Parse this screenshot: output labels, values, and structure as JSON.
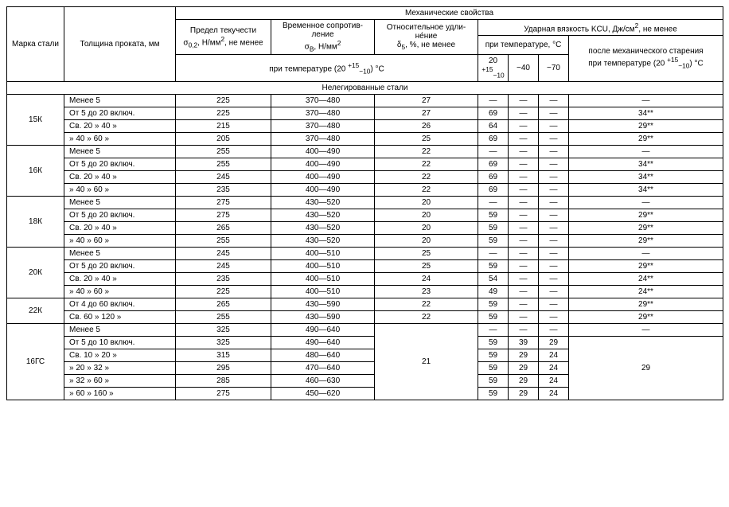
{
  "headers": {
    "steel_grade": "Марка стали",
    "thickness": "Толщина проката, мм",
    "mech_props": "Механические свойства",
    "yield_html": "Предел текучести<br>σ<sub>0,2</sub>, Н/мм<sup>2</sup>, не менее",
    "tensile_html": "Временное сопротив-<br>ление<br>σ<sub>B</sub>, Н/мм<sup>2</sup>",
    "elong_html": "Относительное удли-<br>не́ние<br>δ<sub>5</sub>, %, не менее",
    "impact_html": "Ударная вязкость KCU, Дж/см<sup>2</sup>, не менее",
    "at_temp": "при температуре, °C",
    "after_aging_html": "после механического старения<br>при температуре (20 <sup>+15</sup><sub>−10</sub>) °C",
    "temp_row_html": "при температуре (20 <sup>+15</sup><sub>−10</sub>) °C",
    "t20_html": "20 <sup>+15</sup><sub>−10</sub>",
    "t40": "−40",
    "t70": "−70",
    "section": "Нелегированные стали"
  },
  "groups": [
    {
      "grade": "15К",
      "rows": [
        {
          "th": "Менее 5",
          "y": "225",
          "t": "370—480",
          "e": "27",
          "k20": "—",
          "k40": "—",
          "k70": "—",
          "ka": "—"
        },
        {
          "th": "От  5   до  20 включ.",
          "y": "225",
          "t": "370—480",
          "e": "27",
          "k20": "69",
          "k40": "—",
          "k70": "—",
          "ka": "34**"
        },
        {
          "th": "Св. 20   »    40 »",
          "y": "215",
          "t": "370—480",
          "e": "26",
          "k20": "64",
          "k40": "—",
          "k70": "—",
          "ka": "29**"
        },
        {
          "th": "»  40   »    60 »",
          "y": "205",
          "t": "370—480",
          "e": "25",
          "k20": "69",
          "k40": "—",
          "k70": "—",
          "ka": "29**"
        }
      ]
    },
    {
      "grade": "16К",
      "rows": [
        {
          "th": "Менее 5",
          "y": "255",
          "t": "400—490",
          "e": "22",
          "k20": "—",
          "k40": "—",
          "k70": "—",
          "ka": "—"
        },
        {
          "th": "От  5   до  20 включ.",
          "y": "255",
          "t": "400—490",
          "e": "22",
          "k20": "69",
          "k40": "—",
          "k70": "—",
          "ka": "34**"
        },
        {
          "th": "Св. 20   »    40 »",
          "y": "245",
          "t": "400—490",
          "e": "22",
          "k20": "69",
          "k40": "—",
          "k70": "—",
          "ka": "34**"
        },
        {
          "th": "»  40   »    60 »",
          "y": "235",
          "t": "400—490",
          "e": "22",
          "k20": "69",
          "k40": "—",
          "k70": "—",
          "ka": "34**"
        }
      ]
    },
    {
      "grade": "18К",
      "rows": [
        {
          "th": "Менее 5",
          "y": "275",
          "t": "430—520",
          "e": "20",
          "k20": "—",
          "k40": "—",
          "k70": "—",
          "ka": "—"
        },
        {
          "th": "От  5   до  20 включ.",
          "y": "275",
          "t": "430—520",
          "e": "20",
          "k20": "59",
          "k40": "—",
          "k70": "—",
          "ka": "29**"
        },
        {
          "th": "Св. 20   »    40 »",
          "y": "265",
          "t": "430—520",
          "e": "20",
          "k20": "59",
          "k40": "—",
          "k70": "—",
          "ka": "29**"
        },
        {
          "th": "»  40   »    60 »",
          "y": "255",
          "t": "430—520",
          "e": "20",
          "k20": "59",
          "k40": "—",
          "k70": "—",
          "ka": "29**"
        }
      ]
    },
    {
      "grade": "20К",
      "rows": [
        {
          "th": "Менее 5",
          "y": "245",
          "t": "400—510",
          "e": "25",
          "k20": "—",
          "k40": "—",
          "k70": "—",
          "ka": "—"
        },
        {
          "th": "От  5   до  20 включ.",
          "y": "245",
          "t": "400—510",
          "e": "25",
          "k20": "59",
          "k40": "—",
          "k70": "—",
          "ka": "29**"
        },
        {
          "th": "Св. 20   »    40 »",
          "y": "235",
          "t": "400—510",
          "e": "24",
          "k20": "54",
          "k40": "—",
          "k70": "—",
          "ka": "24**"
        },
        {
          "th": "»  40   »    60 »",
          "y": "225",
          "t": "400—510",
          "e": "23",
          "k20": "49",
          "k40": "—",
          "k70": "—",
          "ka": "24**"
        }
      ]
    },
    {
      "grade": "22К",
      "rows": [
        {
          "th": "От  4   до  60 включ.",
          "y": "265",
          "t": "430—590",
          "e": "22",
          "k20": "59",
          "k40": "—",
          "k70": "—",
          "ka": "29**"
        },
        {
          "th": "Св. 60   »   120 »",
          "y": "255",
          "t": "430—590",
          "e": "22",
          "k20": "59",
          "k40": "—",
          "k70": "—",
          "ka": "29**"
        }
      ]
    },
    {
      "grade": "16ГС",
      "elong_merged": "21",
      "aging_merged": "29",
      "rows": [
        {
          "th": "Менее 5",
          "y": "325",
          "t": "490—640",
          "e": "",
          "k20": "—",
          "k40": "—",
          "k70": "—",
          "ka": "—"
        },
        {
          "th": "От  5   до  10 включ.",
          "y": "325",
          "t": "490—640",
          "e": "",
          "k20": "59",
          "k40": "39",
          "k70": "29",
          "ka": ""
        },
        {
          "th": "Св. 10   »    20 »",
          "y": "315",
          "t": "480—640",
          "e": "",
          "k20": "59",
          "k40": "29",
          "k70": "24",
          "ka": ""
        },
        {
          "th": "»  20   »    32 »",
          "y": "295",
          "t": "470—640",
          "e": "",
          "k20": "59",
          "k40": "29",
          "k70": "24",
          "ka": ""
        },
        {
          "th": "»  32   »    60 »",
          "y": "285",
          "t": "460—630",
          "e": "",
          "k20": "59",
          "k40": "29",
          "k70": "24",
          "ka": ""
        },
        {
          "th": "»  60   »   160 »",
          "y": "275",
          "t": "450—620",
          "e": "",
          "k20": "59",
          "k40": "29",
          "k70": "24",
          "ka": ""
        }
      ]
    }
  ]
}
